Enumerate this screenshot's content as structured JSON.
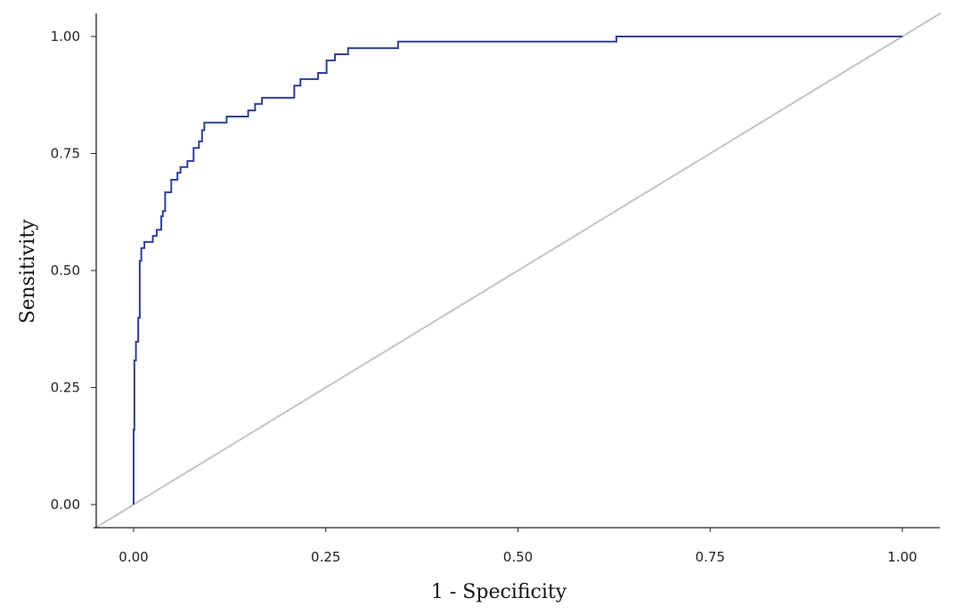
{
  "chart_data": {
    "type": "line",
    "title": "",
    "xlabel": "1 - Specificity",
    "ylabel": "Sensitivity",
    "xlim": [
      -0.05,
      1.05
    ],
    "ylim": [
      -0.05,
      1.05
    ],
    "grid": false,
    "xticks": [
      "0.00",
      "0.25",
      "0.50",
      "0.75",
      "1.00"
    ],
    "yticks": [
      "0.00",
      "0.25",
      "0.50",
      "0.75",
      "1.00"
    ],
    "series": [
      {
        "kind": "roc-step",
        "color": "#2e3f96",
        "x": [
          0,
          0,
          0.001,
          0.003,
          0.006,
          0.008,
          0.01,
          0.014,
          0.025,
          0.03,
          0.036,
          0.038,
          0.041,
          0.049,
          0.057,
          0.061,
          0.07,
          0.078,
          0.085,
          0.089,
          0.092,
          0.121,
          0.149,
          0.158,
          0.167,
          0.209,
          0.217,
          0.24,
          0.251,
          0.262,
          0.279,
          0.344,
          0.628,
          1.0
        ],
        "y": [
          0,
          0.16,
          0.308,
          0.348,
          0.399,
          0.521,
          0.548,
          0.561,
          0.574,
          0.587,
          0.616,
          0.627,
          0.667,
          0.694,
          0.709,
          0.721,
          0.734,
          0.762,
          0.776,
          0.8,
          0.816,
          0.829,
          0.842,
          0.856,
          0.869,
          0.895,
          0.909,
          0.922,
          0.949,
          0.962,
          0.975,
          0.989,
          1.0,
          1.0
        ]
      },
      {
        "kind": "reference-diagonal",
        "color": "#c4c4c4",
        "x": [
          -0.05,
          1.05
        ],
        "y": [
          -0.05,
          1.05
        ]
      }
    ]
  }
}
